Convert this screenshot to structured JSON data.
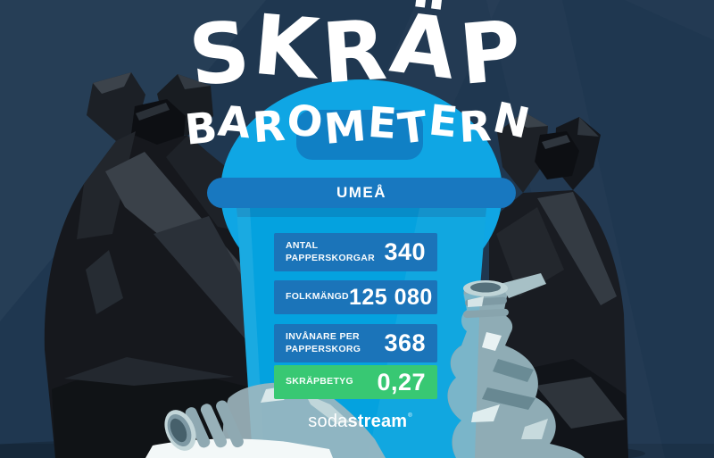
{
  "page": {
    "title_line1": "SKRÄP",
    "title_line2": "BAROMETERN",
    "city": "UMEÅ"
  },
  "stats": [
    {
      "label_line1": "ANTAL",
      "label_line2": "PAPPERSKORGAR",
      "value": "340"
    },
    {
      "label_line1": "FOLKMÄNGD",
      "label_line2": "",
      "value": "125 080"
    },
    {
      "label_line1": "INVÅNARE PER",
      "label_line2": "PAPPERSKORG",
      "value": "368"
    },
    {
      "label_line1": "SKRÄPBETYG",
      "label_line2": "",
      "value": "0,27"
    }
  ],
  "brand": {
    "logo_soda": "soda",
    "logo_stream": "stream",
    "logo_mark": "®"
  },
  "colors": {
    "background_navy": "#1F3750",
    "can_blue": "#0AA6E4",
    "lid_handle_blue": "#1080C5",
    "banner_blue": "#1878C0",
    "stat_box_blue": "#1B74B9",
    "rating_green": "#38C873",
    "text_white": "#FFFFFF",
    "bag_black": "#16181D",
    "bottle_gray": "#9BB4BC"
  },
  "illustrations": [
    "garbage-bag-left",
    "garbage-bag-right",
    "trash-can",
    "plastic-bottle-lying",
    "plastic-bottle-crushed"
  ],
  "chart_data": {
    "type": "table",
    "title": "SKRÄPBAROMETERN",
    "city": "UMEÅ",
    "rows": [
      [
        "ANTAL PAPPERSKORGAR",
        "340"
      ],
      [
        "FOLKMÄNGD",
        "125 080"
      ],
      [
        "INVÅNARE PER PAPPERSKORG",
        "368"
      ],
      [
        "SKRÄPBETYG",
        "0,27"
      ]
    ],
    "values_numeric": {
      "antal_papperskorgar": 340,
      "folkmangd": 125080,
      "invanare_per_papperskorg": 368,
      "skrapbetyg": 0.27
    },
    "brand": "sodastream"
  }
}
